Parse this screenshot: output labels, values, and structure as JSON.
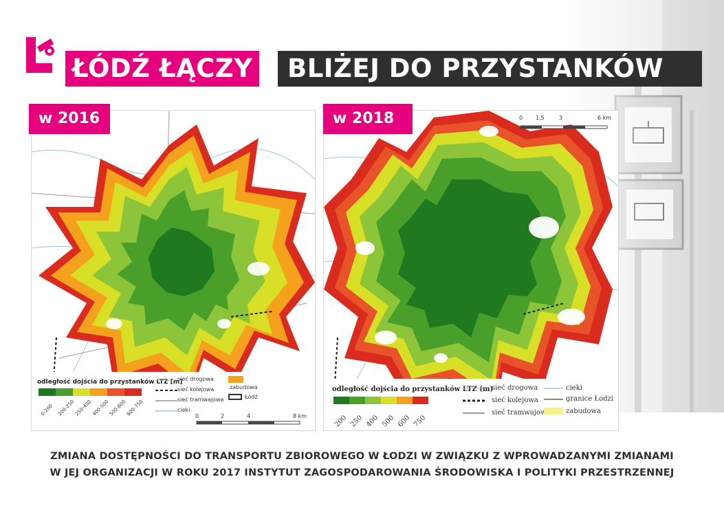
{
  "header": {
    "brand": "ŁÓDŹ ŁĄCZY",
    "headline": "BLIŻEJ DO PRZYSTANKÓW"
  },
  "colors": {
    "brand_pink": "#e6007e",
    "dark": "#2f2f31",
    "access_scale": [
      "#1f7a1f",
      "#4a9f2a",
      "#8cc43a",
      "#d7e027",
      "#f4a21e",
      "#e8532a",
      "#d92b1e"
    ]
  },
  "map_2016": {
    "year_label": "w 2016",
    "legend_title": "odległość dojścia do przystanków LTZ [m]",
    "classes": [
      "0-200",
      "200-250",
      "250-400",
      "400-500",
      "500-600",
      "600-750"
    ],
    "line_legend": [
      "sieć drogowa",
      "sieć kolejowa",
      "sieć tramwajowa",
      "cieki"
    ],
    "area_legend": [
      "zabudowa",
      "Łódź"
    ],
    "scale_ticks": [
      "0",
      "2",
      "4",
      "8 km"
    ]
  },
  "map_2018": {
    "year_label": "w 2018",
    "legend_title": "odległość dojścia do przystanków LTZ (m)",
    "classes": [
      "200",
      "250",
      "400",
      "500",
      "600",
      "750"
    ],
    "line_legend": [
      "sieć drogowa",
      "sieć kolejowa",
      "sieć tramwajowa"
    ],
    "right_legend": [
      "cieki",
      "granice Łodzi",
      "zabudowa"
    ],
    "scale_ticks": [
      "0",
      "1,5",
      "3",
      "6 km"
    ]
  },
  "caption": {
    "line1": "ZMIANA DOSTĘPNOŚCI DO TRANSPORTU ZBIOROWEGO W ŁODZI W ZWIĄZKU Z WPROWADZANYMI ZMIANAMI",
    "line2": "W JEJ ORGANIZACJI W ROKU 2017  INSTYTUT ZAGOSPODAROWANIA ŚRODOWISKA I POLITYKI PRZESTRZENNEJ"
  }
}
